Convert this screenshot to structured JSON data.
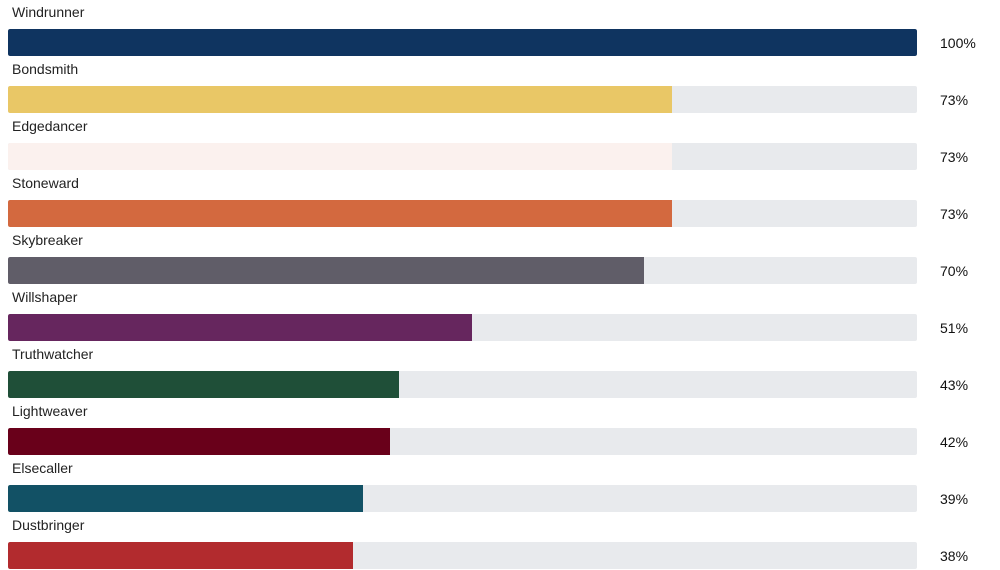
{
  "chart_data": {
    "type": "bar",
    "orientation": "horizontal",
    "categories": [
      "Windrunner",
      "Bondsmith",
      "Edgedancer",
      "Stoneward",
      "Skybreaker",
      "Willshaper",
      "Truthwatcher",
      "Lightweaver",
      "Elsecaller",
      "Dustbringer"
    ],
    "values": [
      100,
      73,
      73,
      73,
      70,
      51,
      43,
      42,
      39,
      38
    ],
    "value_labels": [
      "100%",
      "73%",
      "73%",
      "73%",
      "70%",
      "51%",
      "43%",
      "42%",
      "39%",
      "38%"
    ],
    "colors": [
      "#0f3460",
      "#e9c766",
      "#fbf1ee",
      "#d3693f",
      "#605d68",
      "#66265e",
      "#1f4f38",
      "#69001a",
      "#125165",
      "#b22b2e"
    ],
    "track_color": "#e8eaed",
    "xlim": [
      0,
      100
    ],
    "unit": "%",
    "grid": false,
    "legend": "none"
  }
}
